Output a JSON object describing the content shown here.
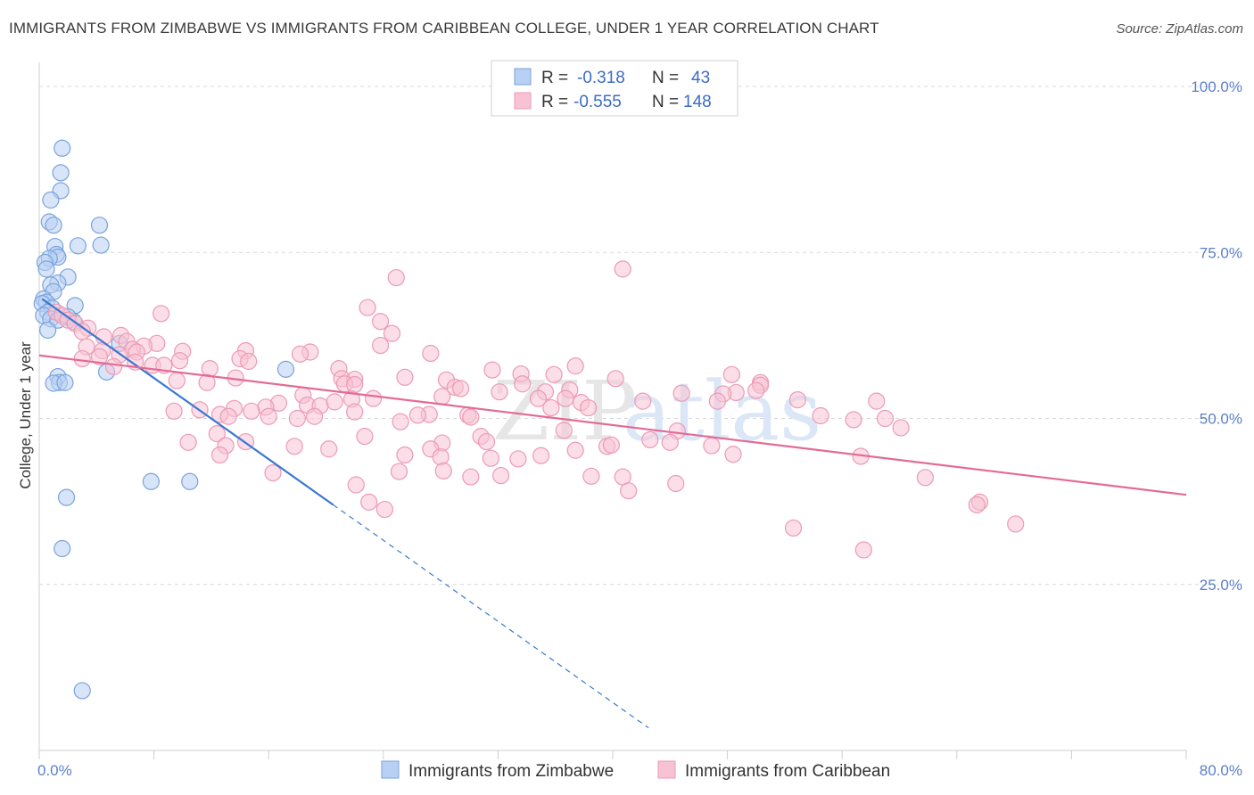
{
  "title": "IMMIGRANTS FROM ZIMBABWE VS IMMIGRANTS FROM CARIBBEAN COLLEGE, UNDER 1 YEAR CORRELATION CHART",
  "source": "Source: ZipAtlas.com",
  "watermark": {
    "zip": "ZIP",
    "atlas": "atlas"
  },
  "legend": {
    "r_label": "R =",
    "n_label": "N =",
    "rows": [
      {
        "r": "-0.318",
        "n": "43"
      },
      {
        "r": "-0.555",
        "n": "148"
      }
    ]
  },
  "colors": {
    "zimbabwe_fill": "#b8d0f3",
    "zimbabwe_stroke": "#7aa3dc",
    "zimbabwe_line": "#3a78d0",
    "caribbean_fill": "#f7c3d4",
    "caribbean_stroke": "#ec9ab5",
    "caribbean_line": "#e46a96",
    "grid": "#d8d8d8",
    "tick_label": "#5a7fc7"
  },
  "chart_data": {
    "type": "scatter",
    "title": "IMMIGRANTS FROM ZIMBABWE VS IMMIGRANTS FROM CARIBBEAN COLLEGE, UNDER 1 YEAR CORRELATION CHART",
    "xlabel": "",
    "ylabel": "College, Under 1 year",
    "xlim": [
      0,
      80
    ],
    "ylim": [
      0,
      105
    ],
    "x_tick_labels": [
      "0.0%",
      "80.0%"
    ],
    "y_ticks": [
      25,
      50,
      75,
      100
    ],
    "y_tick_labels": [
      "25.0%",
      "50.0%",
      "75.0%",
      "100.0%"
    ],
    "grid": "horizontal dashed",
    "legend_position": "top-center",
    "series": [
      {
        "name": "Immigrants from Zimbabwe",
        "r": -0.318,
        "n": 43,
        "trend": {
          "x0": 0.2,
          "y0": 68.0,
          "x1": 20.5,
          "y1": 37.0,
          "dashed_to_x": 42.5
        },
        "points": [
          [
            1.6,
            90.7
          ],
          [
            1.5,
            87.0
          ],
          [
            1.5,
            84.3
          ],
          [
            0.8,
            82.9
          ],
          [
            0.7,
            79.6
          ],
          [
            1.0,
            79.1
          ],
          [
            4.2,
            79.1
          ],
          [
            2.7,
            76.0
          ],
          [
            4.3,
            76.1
          ],
          [
            1.1,
            75.9
          ],
          [
            1.2,
            74.7
          ],
          [
            1.3,
            74.3
          ],
          [
            0.7,
            74.1
          ],
          [
            0.4,
            73.5
          ],
          [
            0.5,
            72.5
          ],
          [
            2.0,
            71.3
          ],
          [
            1.3,
            70.4
          ],
          [
            0.8,
            70.1
          ],
          [
            1.0,
            69.1
          ],
          [
            0.3,
            68.0
          ],
          [
            0.5,
            67.5
          ],
          [
            0.2,
            67.3
          ],
          [
            2.5,
            67.0
          ],
          [
            0.9,
            66.6
          ],
          [
            0.6,
            66.0
          ],
          [
            0.3,
            65.5
          ],
          [
            0.8,
            65.0
          ],
          [
            1.3,
            64.8
          ],
          [
            2.4,
            64.6
          ],
          [
            0.6,
            63.3
          ],
          [
            5.6,
            61.3
          ],
          [
            17.2,
            57.4
          ],
          [
            4.7,
            57.0
          ],
          [
            1.3,
            56.3
          ],
          [
            1.4,
            55.4
          ],
          [
            1.0,
            55.3
          ],
          [
            1.8,
            55.4
          ],
          [
            7.8,
            40.5
          ],
          [
            10.5,
            40.5
          ],
          [
            1.9,
            38.1
          ],
          [
            1.6,
            30.4
          ],
          [
            3.0,
            9.0
          ],
          [
            2.0,
            65.3
          ]
        ]
      },
      {
        "name": "Immigrants from Caribbean",
        "r": -0.555,
        "n": 148,
        "trend": {
          "x0": 0.0,
          "y0": 59.5,
          "x1": 80.0,
          "y1": 38.5
        },
        "points": [
          [
            40.7,
            72.5
          ],
          [
            24.9,
            71.2
          ],
          [
            22.9,
            66.7
          ],
          [
            8.5,
            65.8
          ],
          [
            23.8,
            64.6
          ],
          [
            1.2,
            66.0
          ],
          [
            1.6,
            65.5
          ],
          [
            2.0,
            64.8
          ],
          [
            2.5,
            64.3
          ],
          [
            3.4,
            63.6
          ],
          [
            3.0,
            63.1
          ],
          [
            24.6,
            62.8
          ],
          [
            4.5,
            62.3
          ],
          [
            5.7,
            62.5
          ],
          [
            6.1,
            61.6
          ],
          [
            8.2,
            61.3
          ],
          [
            3.3,
            60.8
          ],
          [
            4.4,
            60.2
          ],
          [
            7.3,
            60.9
          ],
          [
            6.5,
            60.4
          ],
          [
            6.8,
            60.0
          ],
          [
            5.6,
            59.6
          ],
          [
            4.2,
            59.3
          ],
          [
            3.0,
            59.0
          ],
          [
            10.0,
            60.1
          ],
          [
            14.4,
            60.2
          ],
          [
            18.9,
            60.0
          ],
          [
            18.2,
            59.7
          ],
          [
            23.8,
            61.0
          ],
          [
            27.3,
            59.8
          ],
          [
            14.0,
            59.0
          ],
          [
            14.6,
            58.6
          ],
          [
            9.8,
            58.7
          ],
          [
            6.7,
            58.5
          ],
          [
            7.9,
            58.0
          ],
          [
            8.7,
            58.0
          ],
          [
            5.2,
            57.8
          ],
          [
            11.9,
            57.5
          ],
          [
            20.9,
            57.5
          ],
          [
            31.6,
            57.3
          ],
          [
            35.9,
            56.6
          ],
          [
            33.6,
            56.7
          ],
          [
            37.4,
            57.9
          ],
          [
            48.3,
            56.6
          ],
          [
            25.5,
            56.2
          ],
          [
            21.1,
            56.0
          ],
          [
            22.0,
            55.9
          ],
          [
            13.7,
            56.1
          ],
          [
            9.6,
            55.7
          ],
          [
            11.7,
            55.4
          ],
          [
            28.4,
            55.8
          ],
          [
            33.7,
            55.2
          ],
          [
            40.2,
            56.0
          ],
          [
            50.3,
            55.4
          ],
          [
            21.3,
            55.2
          ],
          [
            22.0,
            55.1
          ],
          [
            29.0,
            54.7
          ],
          [
            29.4,
            54.5
          ],
          [
            32.1,
            54.0
          ],
          [
            35.3,
            54.0
          ],
          [
            37.0,
            54.3
          ],
          [
            44.8,
            53.8
          ],
          [
            48.6,
            53.9
          ],
          [
            47.7,
            53.7
          ],
          [
            42.1,
            52.6
          ],
          [
            34.8,
            53.0
          ],
          [
            28.1,
            53.3
          ],
          [
            23.3,
            53.0
          ],
          [
            21.8,
            52.9
          ],
          [
            18.4,
            53.5
          ],
          [
            16.7,
            52.3
          ],
          [
            18.7,
            52.0
          ],
          [
            15.8,
            51.7
          ],
          [
            19.6,
            51.9
          ],
          [
            13.6,
            51.5
          ],
          [
            14.8,
            51.1
          ],
          [
            11.2,
            51.3
          ],
          [
            9.4,
            51.1
          ],
          [
            12.6,
            50.6
          ],
          [
            13.2,
            50.3
          ],
          [
            16.0,
            50.3
          ],
          [
            18.0,
            50.0
          ],
          [
            19.2,
            50.3
          ],
          [
            22.0,
            51.0
          ],
          [
            27.2,
            50.6
          ],
          [
            26.4,
            50.5
          ],
          [
            25.2,
            49.5
          ],
          [
            37.8,
            52.4
          ],
          [
            36.7,
            53.0
          ],
          [
            38.3,
            51.6
          ],
          [
            47.3,
            52.6
          ],
          [
            52.9,
            52.8
          ],
          [
            58.4,
            52.6
          ],
          [
            54.5,
            50.4
          ],
          [
            56.8,
            49.8
          ],
          [
            59.0,
            50.0
          ],
          [
            60.1,
            48.6
          ],
          [
            44.5,
            48.1
          ],
          [
            36.6,
            48.2
          ],
          [
            30.8,
            47.3
          ],
          [
            31.2,
            46.5
          ],
          [
            28.1,
            46.3
          ],
          [
            27.3,
            45.4
          ],
          [
            22.7,
            47.3
          ],
          [
            12.4,
            47.7
          ],
          [
            13.0,
            45.9
          ],
          [
            10.4,
            46.4
          ],
          [
            14.4,
            46.5
          ],
          [
            17.8,
            45.8
          ],
          [
            25.5,
            44.5
          ],
          [
            28.0,
            44.2
          ],
          [
            31.5,
            44.0
          ],
          [
            33.4,
            43.9
          ],
          [
            35.0,
            44.4
          ],
          [
            37.4,
            45.2
          ],
          [
            39.6,
            45.8
          ],
          [
            39.9,
            46.0
          ],
          [
            42.6,
            46.8
          ],
          [
            44.0,
            46.4
          ],
          [
            46.9,
            45.9
          ],
          [
            48.4,
            44.6
          ],
          [
            57.3,
            44.3
          ],
          [
            12.6,
            44.5
          ],
          [
            16.3,
            41.8
          ],
          [
            20.2,
            45.4
          ],
          [
            25.1,
            42.0
          ],
          [
            28.2,
            42.1
          ],
          [
            30.1,
            41.2
          ],
          [
            32.2,
            41.4
          ],
          [
            38.5,
            41.3
          ],
          [
            40.7,
            41.2
          ],
          [
            44.4,
            40.2
          ],
          [
            22.1,
            40.0
          ],
          [
            41.1,
            39.1
          ],
          [
            23.0,
            37.4
          ],
          [
            24.1,
            36.3
          ],
          [
            61.8,
            41.1
          ],
          [
            65.6,
            37.4
          ],
          [
            65.4,
            37.0
          ],
          [
            68.1,
            34.1
          ],
          [
            52.6,
            33.5
          ],
          [
            57.5,
            30.2
          ],
          [
            29.9,
            50.5
          ],
          [
            35.7,
            51.6
          ],
          [
            50.3,
            55.0
          ],
          [
            50.0,
            54.2
          ],
          [
            20.6,
            52.5
          ],
          [
            30.1,
            50.2
          ]
        ]
      }
    ]
  },
  "bottom_legend": [
    "Immigrants from Zimbabwe",
    "Immigrants from Caribbean"
  ]
}
